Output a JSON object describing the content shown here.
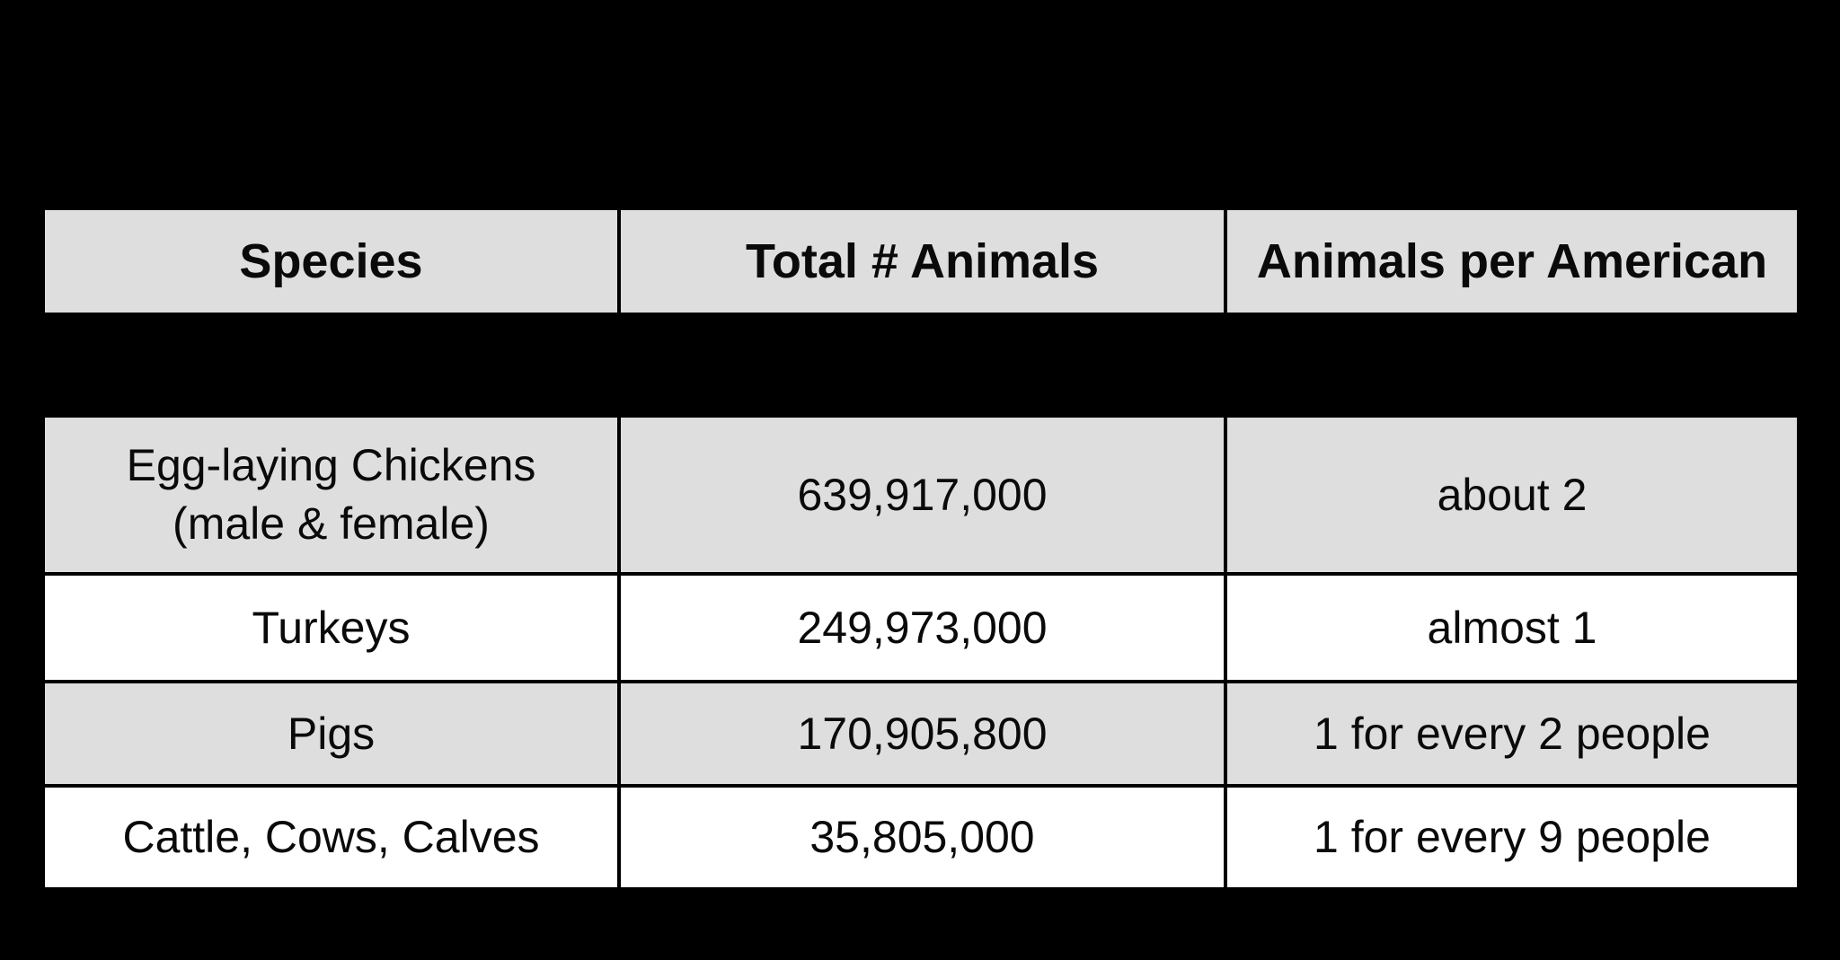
{
  "colors": {
    "background": "#000000",
    "row_shaded": "#DEDEDE",
    "row_plain": "#FFFFFF",
    "text": "#0a0a0a",
    "grid_line": "#000000"
  },
  "chart_data": {
    "type": "table",
    "columns": [
      "Species",
      "Total # Animals",
      "Animals per American"
    ],
    "rows": [
      [
        "Egg-laying Chickens\n(male & female)",
        "639,917,000",
        "about 2"
      ],
      [
        "Turkeys",
        "249,973,000",
        "almost 1"
      ],
      [
        "Pigs",
        "170,905,800",
        "1 for every 2 people"
      ],
      [
        "Cattle, Cows, Calves",
        "35,805,000",
        "1 for every 9 people"
      ]
    ],
    "layout": {
      "header_fill": "shaded",
      "row_fill_pattern": [
        "shaded",
        "plain",
        "shaded",
        "plain"
      ],
      "header_detached_from_body": true
    }
  }
}
